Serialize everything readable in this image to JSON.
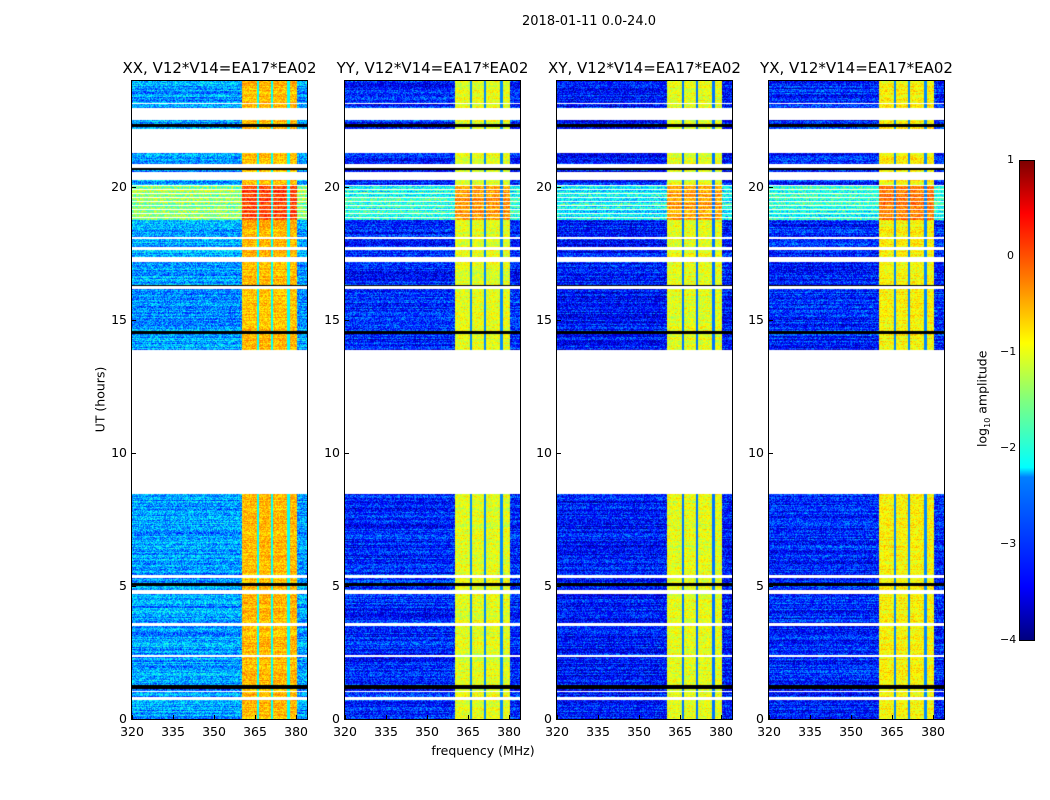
{
  "suptitle": "2018-01-11 0.0-24.0",
  "chart_data": [
    {
      "type": "heatmap",
      "title": "XX, V12*V14=EA17*EA02",
      "bg_level": -2.6,
      "band_level": -0.55
    },
    {
      "type": "heatmap",
      "title": "YY, V12*V14=EA17*EA02",
      "bg_level": -3.2,
      "band_level": -1.0
    },
    {
      "type": "heatmap",
      "title": "XY, V12*V14=EA17*EA02",
      "bg_level": -3.3,
      "band_level": -1.0
    },
    {
      "type": "heatmap",
      "title": "YX, V12*V14=EA17*EA02",
      "bg_level": -3.2,
      "band_level": -0.85
    }
  ],
  "axes": {
    "xlabel": "frequency (MHz)",
    "ylabel": "UT (hours)",
    "xlim": [
      320,
      384
    ],
    "ylim": [
      0,
      24
    ],
    "xticks": [
      "320",
      "335",
      "350",
      "365",
      "380"
    ],
    "xtick_values": [
      320,
      335,
      350,
      365,
      380
    ],
    "yticks": [
      "0",
      "5",
      "10",
      "15",
      "20"
    ],
    "ytick_values": [
      0,
      5,
      10,
      15,
      20
    ],
    "band_mhz": [
      360,
      380
    ],
    "band_edges_mhz": [
      366,
      371,
      377
    ],
    "gaps_hours": [
      [
        0.68,
        0.8
      ],
      [
        1.0,
        1.05
      ],
      [
        2.3,
        2.4
      ],
      [
        3.5,
        3.6
      ],
      [
        4.7,
        4.85
      ],
      [
        5.3,
        5.4
      ],
      [
        8.45,
        13.9
      ],
      [
        16.2,
        16.3
      ],
      [
        17.2,
        17.4
      ],
      [
        17.65,
        17.75
      ],
      [
        18.05,
        18.15
      ],
      [
        20.3,
        20.6
      ],
      [
        20.75,
        20.9
      ],
      [
        21.3,
        22.2
      ],
      [
        22.55,
        23.0
      ],
      [
        23.15,
        23.2
      ]
    ],
    "flag_rows_hours": [
      [
        1.1,
        1.25
      ],
      [
        5.0,
        5.1
      ],
      [
        14.5,
        14.6
      ],
      [
        16.3,
        16.35
      ],
      [
        19.3,
        19.35
      ],
      [
        20.68,
        20.75
      ],
      [
        22.3,
        22.4
      ]
    ],
    "stripe_zone_hours": [
      18.8,
      20.1
    ]
  },
  "colorbar": {
    "label_main": "log",
    "label_sub": "10",
    "label_rest": " amplitude",
    "range": [
      -4,
      1
    ],
    "ticks": [
      "1",
      "0",
      "−1",
      "−2",
      "−3",
      "−4"
    ],
    "tick_values": [
      1,
      0,
      -1,
      -2,
      -3,
      -4
    ]
  }
}
